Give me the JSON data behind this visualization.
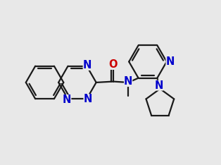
{
  "bg_color": "#e8e8e8",
  "bond_color": "#1a1a1a",
  "N_color": "#0000cc",
  "O_color": "#cc0000",
  "lw": 1.6,
  "fs": 10.5,
  "bl": 1.0,
  "xlim": [
    -5.5,
    5.5
  ],
  "ylim": [
    -4.0,
    4.0
  ]
}
